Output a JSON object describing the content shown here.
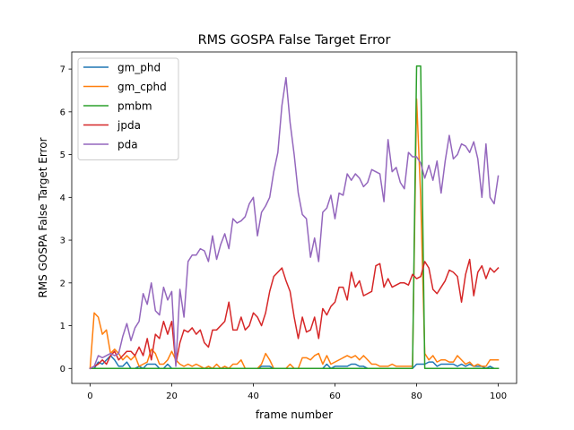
{
  "chart_data": {
    "type": "line",
    "title": "RMS GOSPA False Target Error",
    "xlabel": "frame number",
    "ylabel": "RMS GOSPA False Target Error",
    "xlim": [
      -4.5,
      104.5
    ],
    "ylim": [
      -0.35,
      7.4
    ],
    "xticks": [
      0,
      20,
      40,
      60,
      80,
      100
    ],
    "yticks": [
      0,
      1,
      2,
      3,
      4,
      5,
      6,
      7
    ],
    "grid": false,
    "legend_position": "top-left",
    "series": [
      {
        "name": "gm_phd",
        "color": "#1f77b4",
        "x": [
          0,
          1,
          2,
          3,
          4,
          5,
          6,
          7,
          8,
          9,
          10,
          11,
          12,
          13,
          14,
          15,
          16,
          17,
          18,
          19,
          20,
          21,
          22,
          23,
          24,
          25,
          26,
          27,
          28,
          29,
          30,
          31,
          32,
          33,
          34,
          35,
          36,
          37,
          38,
          39,
          40,
          41,
          42,
          43,
          44,
          45,
          46,
          47,
          48,
          49,
          50,
          51,
          52,
          53,
          54,
          55,
          56,
          57,
          58,
          59,
          60,
          61,
          62,
          63,
          64,
          65,
          66,
          67,
          68,
          69,
          70,
          71,
          72,
          73,
          74,
          75,
          76,
          77,
          78,
          79,
          80,
          81,
          82,
          83,
          84,
          85,
          86,
          87,
          88,
          89,
          90,
          91,
          92,
          93,
          94,
          95,
          96,
          97,
          98,
          99,
          100
        ],
        "values": [
          0,
          0,
          0.15,
          0.1,
          0.2,
          0.3,
          0.2,
          0.05,
          0.05,
          0.15,
          0,
          0,
          0.05,
          0,
          0.1,
          0.1,
          0.1,
          0,
          0,
          0.1,
          0,
          0,
          0,
          0,
          0,
          0,
          0,
          0,
          0,
          0,
          0,
          0,
          0,
          0,
          0,
          0,
          0,
          0,
          0,
          0,
          0,
          0,
          0.05,
          0.05,
          0.05,
          0,
          0,
          0,
          0,
          0,
          0,
          0,
          0,
          0,
          0,
          0,
          0,
          0,
          0.1,
          0,
          0.05,
          0.05,
          0.05,
          0.05,
          0.1,
          0.1,
          0.05,
          0.05,
          0,
          0,
          0,
          0,
          0,
          0,
          0,
          0,
          0,
          0,
          0,
          0,
          0.1,
          0.1,
          0.1,
          0.15,
          0.15,
          0.05,
          0.1,
          0.1,
          0.1,
          0.1,
          0.05,
          0.1,
          0.05,
          0.1,
          0.05,
          0.05,
          0.05,
          0,
          0.05,
          0,
          0
        ]
      },
      {
        "name": "gm_cphd",
        "color": "#ff7f0e",
        "x": [
          0,
          1,
          2,
          3,
          4,
          5,
          6,
          7,
          8,
          9,
          10,
          11,
          12,
          13,
          14,
          15,
          16,
          17,
          18,
          19,
          20,
          21,
          22,
          23,
          24,
          25,
          26,
          27,
          28,
          29,
          30,
          31,
          32,
          33,
          34,
          35,
          36,
          37,
          38,
          39,
          40,
          41,
          42,
          43,
          44,
          45,
          46,
          47,
          48,
          49,
          50,
          51,
          52,
          53,
          54,
          55,
          56,
          57,
          58,
          59,
          60,
          61,
          62,
          63,
          64,
          65,
          66,
          67,
          68,
          69,
          70,
          71,
          72,
          73,
          74,
          75,
          76,
          77,
          78,
          79,
          80,
          81,
          82,
          83,
          84,
          85,
          86,
          87,
          88,
          89,
          90,
          91,
          92,
          93,
          94,
          95,
          96,
          97,
          98,
          99,
          100
        ],
        "values": [
          0,
          1.3,
          1.2,
          0.8,
          0.9,
          0.35,
          0.45,
          0.35,
          0.2,
          0.3,
          0.2,
          0.3,
          0.05,
          0.1,
          0.15,
          0.45,
          0.35,
          0.1,
          0.1,
          0.2,
          0.4,
          0.2,
          0.1,
          0.05,
          0.1,
          0.05,
          0.1,
          0.05,
          0,
          0.05,
          0,
          0.1,
          0,
          0.05,
          0,
          0.1,
          0.1,
          0.2,
          0,
          0,
          0,
          0,
          0.1,
          0.35,
          0.2,
          0,
          0,
          0,
          0,
          0.1,
          0,
          0,
          0.25,
          0.25,
          0.2,
          0.3,
          0.35,
          0.1,
          0.3,
          0.1,
          0.15,
          0.2,
          0.25,
          0.3,
          0.25,
          0.3,
          0.2,
          0.3,
          0.2,
          0.1,
          0.1,
          0.05,
          0.05,
          0.05,
          0.1,
          0.05,
          0.05,
          0.05,
          0.05,
          0.05,
          6.3,
          4.0,
          0.35,
          0.2,
          0.3,
          0.15,
          0.2,
          0.2,
          0.15,
          0.15,
          0.3,
          0.2,
          0.1,
          0.15,
          0.05,
          0.1,
          0.05,
          0.05,
          0.2,
          0.2,
          0.2
        ]
      },
      {
        "name": "pmbm",
        "color": "#2ca02c",
        "x": [
          0,
          1,
          2,
          3,
          4,
          5,
          6,
          7,
          8,
          9,
          10,
          11,
          12,
          13,
          14,
          15,
          16,
          17,
          18,
          19,
          20,
          21,
          22,
          23,
          24,
          25,
          26,
          27,
          28,
          29,
          30,
          31,
          32,
          33,
          34,
          35,
          36,
          37,
          38,
          39,
          40,
          41,
          42,
          43,
          44,
          45,
          46,
          47,
          48,
          49,
          50,
          51,
          52,
          53,
          54,
          55,
          56,
          57,
          58,
          59,
          60,
          61,
          62,
          63,
          64,
          65,
          66,
          67,
          68,
          69,
          70,
          71,
          72,
          73,
          74,
          75,
          76,
          77,
          78,
          79,
          80,
          81,
          82,
          83,
          84,
          85,
          86,
          87,
          88,
          89,
          90,
          91,
          92,
          93,
          94,
          95,
          96,
          97,
          98,
          99,
          100
        ],
        "values": [
          0,
          0,
          0,
          0,
          0,
          0,
          0,
          0,
          0,
          0,
          0,
          0,
          0,
          0,
          0,
          0,
          0,
          0,
          0,
          0,
          0,
          0,
          0,
          0,
          0,
          0,
          0,
          0,
          0,
          0,
          0,
          0,
          0,
          0,
          0,
          0,
          0,
          0,
          0,
          0,
          0,
          0,
          0,
          0,
          0,
          0,
          0,
          0,
          0,
          0,
          0,
          0,
          0,
          0,
          0,
          0,
          0,
          0,
          0,
          0,
          0,
          0,
          0,
          0,
          0,
          0,
          0,
          0,
          0,
          0,
          0,
          0,
          0,
          0,
          0,
          0,
          0,
          0,
          0,
          0,
          7.07,
          7.07,
          0,
          0,
          0,
          0,
          0,
          0,
          0,
          0,
          0,
          0,
          0,
          0,
          0,
          0,
          0,
          0,
          0,
          0,
          0
        ]
      },
      {
        "name": "jpda",
        "color": "#d62728",
        "x": [
          0,
          1,
          2,
          3,
          4,
          5,
          6,
          7,
          8,
          9,
          10,
          11,
          12,
          13,
          14,
          15,
          16,
          17,
          18,
          19,
          20,
          21,
          22,
          23,
          24,
          25,
          26,
          27,
          28,
          29,
          30,
          31,
          32,
          33,
          34,
          35,
          36,
          37,
          38,
          39,
          40,
          41,
          42,
          43,
          44,
          45,
          46,
          47,
          48,
          49,
          50,
          51,
          52,
          53,
          54,
          55,
          56,
          57,
          58,
          59,
          60,
          61,
          62,
          63,
          64,
          65,
          66,
          67,
          68,
          69,
          70,
          71,
          72,
          73,
          74,
          75,
          76,
          77,
          78,
          79,
          80,
          81,
          82,
          83,
          84,
          85,
          86,
          87,
          88,
          89,
          90,
          91,
          92,
          93,
          94,
          95,
          96,
          97,
          98,
          99,
          100
        ],
        "values": [
          0,
          0.05,
          0.1,
          0.2,
          0.1,
          0.3,
          0.4,
          0.2,
          0.3,
          0.4,
          0.4,
          0.3,
          0.5,
          0.3,
          0.7,
          0.2,
          0.8,
          0.7,
          1.1,
          0.8,
          1.1,
          0.1,
          0.6,
          0.9,
          0.85,
          0.95,
          0.8,
          0.9,
          0.6,
          0.5,
          0.9,
          0.9,
          1.0,
          1.1,
          1.55,
          0.9,
          0.9,
          1.2,
          0.9,
          1.0,
          1.3,
          1.2,
          1.0,
          1.3,
          1.8,
          2.15,
          2.25,
          2.35,
          2.05,
          1.8,
          1.2,
          0.7,
          1.2,
          0.85,
          0.9,
          1.2,
          0.7,
          1.4,
          1.25,
          1.45,
          1.55,
          1.9,
          1.9,
          1.6,
          2.25,
          1.9,
          2.05,
          1.7,
          1.75,
          1.8,
          2.4,
          2.45,
          1.9,
          2.1,
          1.9,
          1.95,
          2.0,
          2.0,
          1.95,
          2.2,
          2.1,
          2.15,
          2.5,
          2.35,
          1.85,
          1.75,
          1.9,
          2.05,
          2.3,
          2.25,
          2.15,
          1.55,
          2.2,
          2.55,
          1.7,
          2.25,
          2.4,
          2.1,
          2.35,
          2.25,
          2.35
        ]
      },
      {
        "name": "pda",
        "color": "#9467bd",
        "x": [
          0,
          1,
          2,
          3,
          4,
          5,
          6,
          7,
          8,
          9,
          10,
          11,
          12,
          13,
          14,
          15,
          16,
          17,
          18,
          19,
          20,
          21,
          22,
          23,
          24,
          25,
          26,
          27,
          28,
          29,
          30,
          31,
          32,
          33,
          34,
          35,
          36,
          37,
          38,
          39,
          40,
          41,
          42,
          43,
          44,
          45,
          46,
          47,
          48,
          49,
          50,
          51,
          52,
          53,
          54,
          55,
          56,
          57,
          58,
          59,
          60,
          61,
          62,
          63,
          64,
          65,
          66,
          67,
          68,
          69,
          70,
          71,
          72,
          73,
          74,
          75,
          76,
          77,
          78,
          79,
          80,
          81,
          82,
          83,
          84,
          85,
          86,
          87,
          88,
          89,
          90,
          91,
          92,
          93,
          94,
          95,
          96,
          97,
          98,
          99,
          100
        ],
        "values": [
          0,
          0.05,
          0.3,
          0.25,
          0.3,
          0.35,
          0.3,
          0.35,
          0.75,
          1.05,
          0.65,
          0.95,
          1.1,
          1.75,
          1.5,
          2.0,
          1.35,
          1.25,
          1.9,
          1.6,
          1.8,
          0.05,
          1.85,
          1.2,
          2.5,
          2.65,
          2.65,
          2.8,
          2.75,
          2.5,
          3.1,
          2.55,
          2.9,
          3.15,
          2.8,
          3.5,
          3.4,
          3.45,
          3.55,
          3.85,
          4.0,
          3.1,
          3.65,
          3.8,
          4.0,
          4.6,
          5.05,
          6.15,
          6.8,
          5.75,
          5.0,
          4.1,
          3.6,
          3.5,
          2.6,
          3.05,
          2.5,
          3.65,
          3.75,
          4.05,
          3.5,
          4.1,
          4.05,
          4.55,
          4.4,
          4.55,
          4.45,
          4.25,
          4.35,
          4.65,
          4.6,
          4.55,
          3.9,
          5.35,
          4.6,
          4.7,
          4.35,
          4.2,
          5.05,
          4.95,
          4.95,
          4.8,
          4.45,
          4.75,
          4.4,
          4.85,
          4.1,
          4.85,
          5.45,
          4.9,
          5.0,
          5.25,
          5.2,
          5.05,
          5.3,
          4.9,
          4.0,
          5.25,
          4.0,
          3.85,
          4.5
        ]
      }
    ]
  }
}
